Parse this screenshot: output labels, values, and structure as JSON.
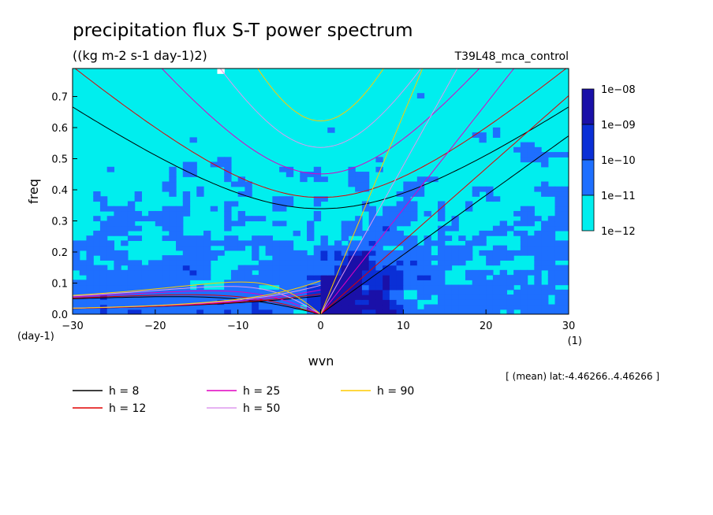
{
  "chart_data": {
    "type": "heatmap",
    "title": "precipitation flux S-T power spectrum",
    "subtitle": "((kg m-2 s-1 day-1)2)",
    "experiment": "T39L48_mca_control",
    "xlabel": "wvn",
    "ylabel": "freq",
    "x_unit": "(1)",
    "y_unit": "(day-1)",
    "xlim": [
      -30,
      30
    ],
    "ylim": [
      0,
      0.79
    ],
    "x_ticks": [
      "-30",
      "-20",
      "-10",
      "0",
      "10",
      "20",
      "30"
    ],
    "y_ticks": [
      "0.0",
      "0.1",
      "0.2",
      "0.3",
      "0.4",
      "0.5",
      "0.6",
      "0.7"
    ],
    "note": "[ (mean) lat:-4.46266..4.46266 ]",
    "colorbar": {
      "levels": [
        "1e-12",
        "1e-11",
        "1e-10",
        "1e-09",
        "1e-08"
      ],
      "colors": [
        "#00eeee",
        "#1e6fff",
        "#0a2fd6",
        "#1a10a8"
      ]
    },
    "series": [
      {
        "name": "h =  8",
        "h": 8,
        "color": "#000000"
      },
      {
        "name": "h = 12",
        "h": 12,
        "color": "#e00000"
      },
      {
        "name": "h = 25",
        "h": 25,
        "color": "#e000c0"
      },
      {
        "name": "h = 50",
        "h": 50,
        "color": "#dd99ee"
      },
      {
        "name": "h = 90",
        "h": 90,
        "color": "#ffcc00"
      }
    ]
  }
}
